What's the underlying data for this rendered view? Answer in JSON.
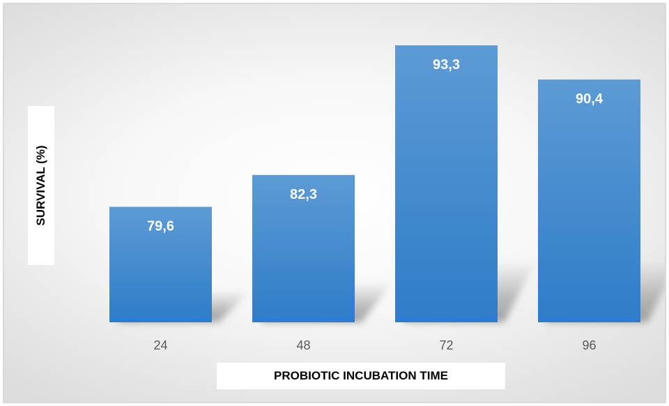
{
  "chart_data": {
    "type": "bar",
    "title": "",
    "xlabel": "PROBIOTIC INCUBATION TIME",
    "ylabel": "SURVIVAL (%)",
    "categories": [
      "24",
      "48",
      "72",
      "96"
    ],
    "values": [
      79.6,
      82.3,
      93.3,
      90.4
    ],
    "data_labels": [
      "79,6",
      "82,3",
      "93,3",
      "90,4"
    ],
    "ylim": [
      69.8,
      93.3
    ],
    "grid": false,
    "legend": "none",
    "colors": {
      "bar_top": "#5c9bd5",
      "bar_bottom": "#2f7cc8",
      "label_text": "#ffffff",
      "tick_text": "#595959"
    }
  }
}
